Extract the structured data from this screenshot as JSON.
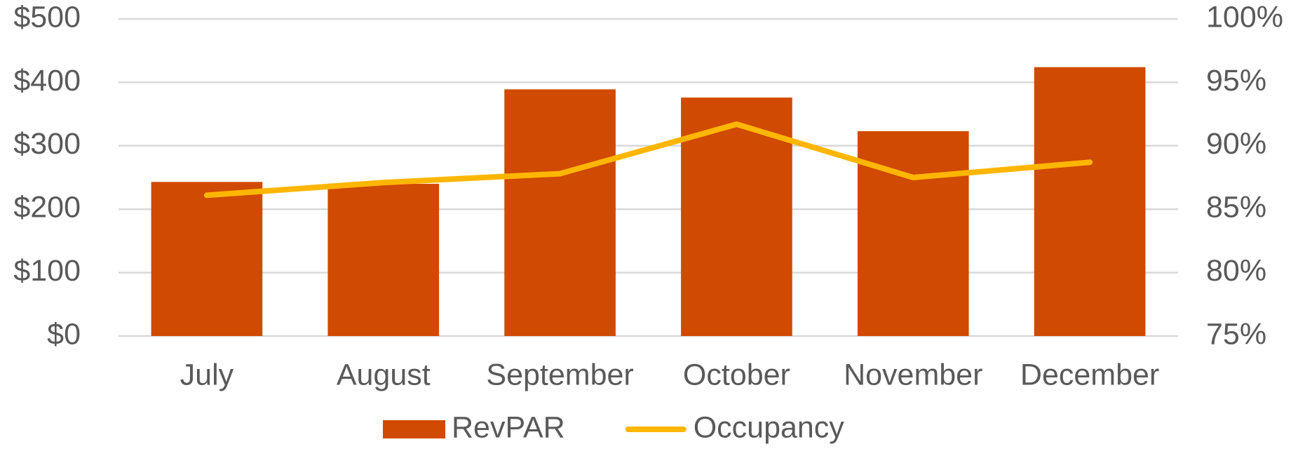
{
  "chart_data": {
    "type": "bar",
    "categories": [
      "July",
      "August",
      "September",
      "October",
      "November",
      "December"
    ],
    "series": [
      {
        "name": "RevPAR",
        "type": "bar",
        "color": "#d04a02",
        "values": [
          243,
          240,
          389,
          376,
          323,
          424
        ]
      },
      {
        "name": "Occupancy",
        "type": "line",
        "axis": "y2",
        "color": "#ffb600",
        "values": [
          86.1,
          87.1,
          87.8,
          91.7,
          87.5,
          88.7
        ]
      }
    ],
    "ylim": [
      0,
      500
    ],
    "yticks": [
      {
        "value": 0,
        "label": "$0"
      },
      {
        "value": 100,
        "label": "$100"
      },
      {
        "value": 200,
        "label": "$200"
      },
      {
        "value": 300,
        "label": "$300"
      },
      {
        "value": 400,
        "label": "$400"
      },
      {
        "value": 500,
        "label": "$500"
      }
    ],
    "y2lim": [
      75,
      100
    ],
    "y2ticks": [
      {
        "value": 75,
        "label": "75%"
      },
      {
        "value": 80,
        "label": "80%"
      },
      {
        "value": 85,
        "label": "85%"
      },
      {
        "value": 90,
        "label": "90%"
      },
      {
        "value": 95,
        "label": "95%"
      },
      {
        "value": 100,
        "label": "100%"
      }
    ],
    "grid": true,
    "legend": "bottom"
  }
}
